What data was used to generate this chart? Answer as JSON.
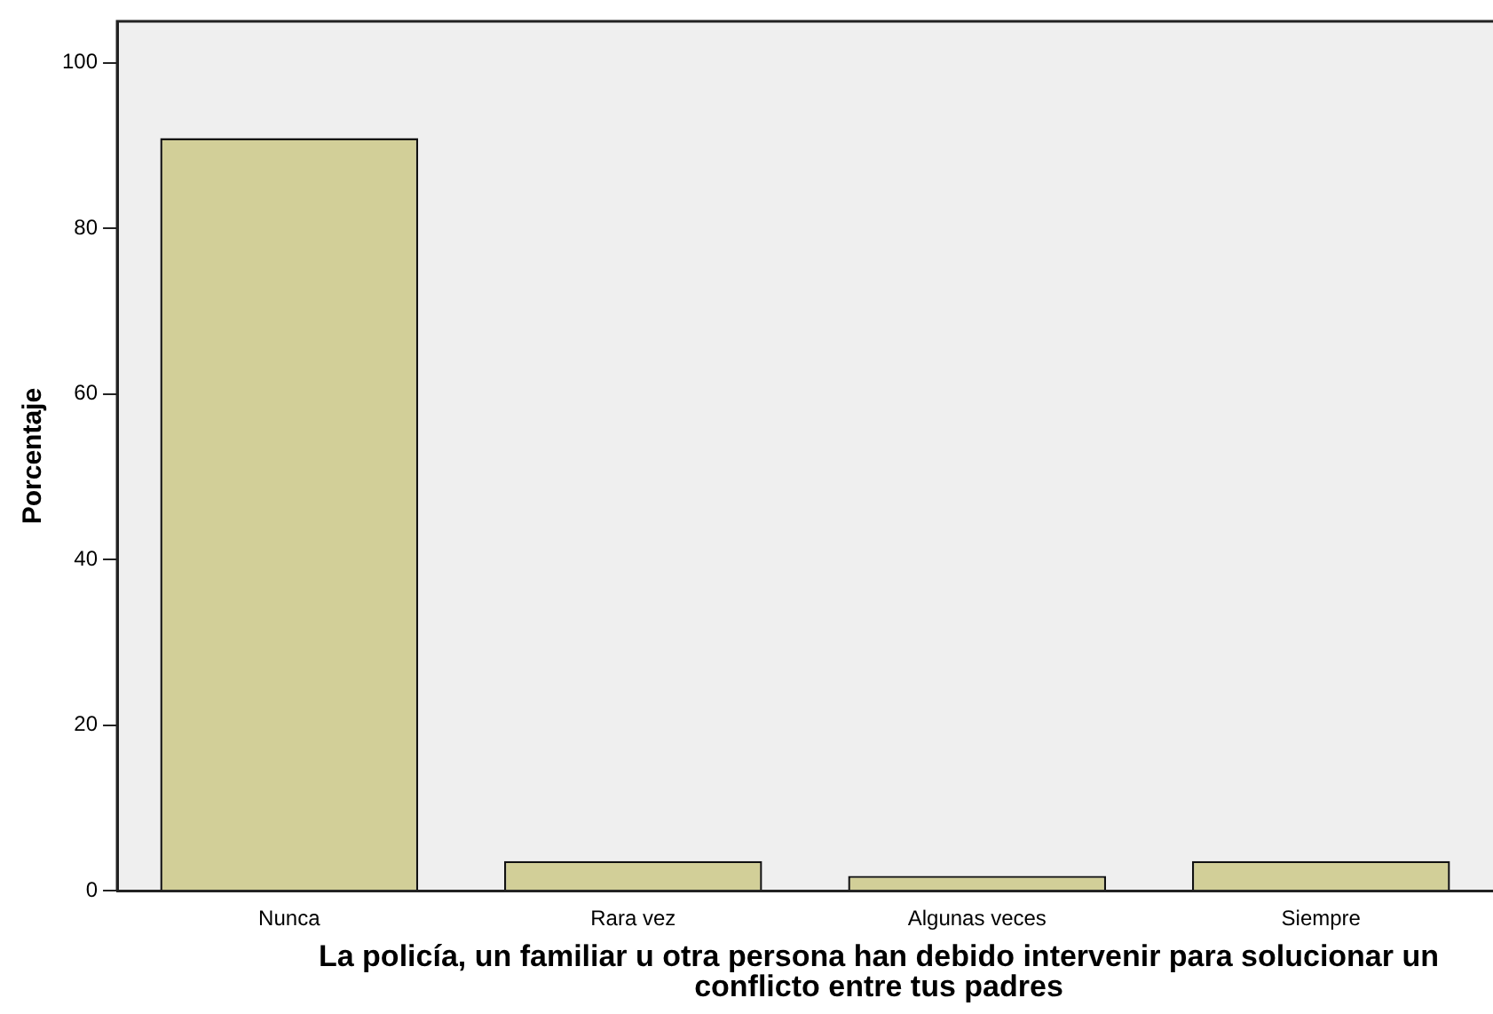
{
  "chart_data": {
    "type": "bar",
    "xlabel": "La policía, un familiar u otra persona han debido intervenir para solucionar un conflicto entre tus padres",
    "ylabel": "Porcentaje",
    "categories": [
      "Nunca",
      "Rara vez",
      "Algunas veces",
      "Siempre"
    ],
    "values": [
      90.9,
      3.6,
      1.8,
      3.6
    ],
    "color": "#d2cf98",
    "ylim": [
      0,
      105
    ],
    "yticks": [
      0,
      20,
      40,
      60,
      80,
      100
    ],
    "grid": false,
    "legend": false
  }
}
